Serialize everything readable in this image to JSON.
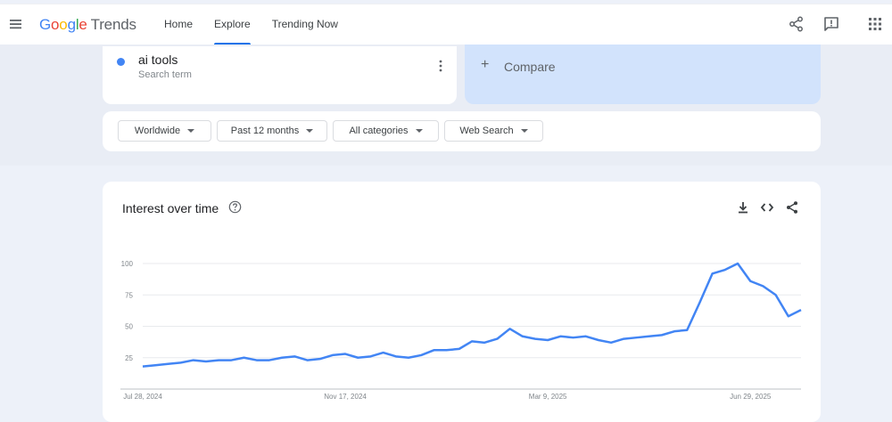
{
  "header": {
    "logo_google": [
      "G",
      "o",
      "o",
      "g",
      "l",
      "e"
    ],
    "logo_trends": "Trends",
    "nav": [
      {
        "label": "Home",
        "active": false
      },
      {
        "label": "Explore",
        "active": true
      },
      {
        "label": "Trending Now",
        "active": false
      }
    ],
    "icons": [
      "menu-icon",
      "share-icon",
      "feedback-icon",
      "apps-grid-icon"
    ]
  },
  "search": {
    "term": "ai tools",
    "term_type": "Search term",
    "term_color": "#4285f4",
    "compare_label": "Compare"
  },
  "filters": {
    "region": "Worldwide",
    "period": "Past 12 months",
    "category": "All categories",
    "property": "Web Search"
  },
  "chart_card": {
    "title": "Interest over time",
    "icons": [
      "help-icon",
      "download-icon",
      "embed-icon",
      "share-icon"
    ]
  },
  "chart_data": {
    "type": "line",
    "title": "Interest over time",
    "xlabel": "",
    "ylabel": "",
    "ylim": [
      0,
      100
    ],
    "yticks": [
      25,
      50,
      75,
      100
    ],
    "x_tick_labels": [
      "Jul 28, 2024",
      "Nov 17, 2024",
      "Mar 9, 2025",
      "Jun 29, 2025"
    ],
    "grid": true,
    "color": "#4285f4",
    "x": [
      "Jul 28, 2024",
      "Aug 4, 2024",
      "Aug 11, 2024",
      "Aug 18, 2024",
      "Aug 25, 2024",
      "Sep 1, 2024",
      "Sep 8, 2024",
      "Sep 15, 2024",
      "Sep 22, 2024",
      "Sep 29, 2024",
      "Oct 6, 2024",
      "Oct 13, 2024",
      "Oct 20, 2024",
      "Oct 27, 2024",
      "Nov 3, 2024",
      "Nov 10, 2024",
      "Nov 17, 2024",
      "Nov 24, 2024",
      "Dec 1, 2024",
      "Dec 8, 2024",
      "Dec 15, 2024",
      "Dec 22, 2024",
      "Dec 29, 2024",
      "Jan 5, 2025",
      "Jan 12, 2025",
      "Jan 19, 2025",
      "Jan 26, 2025",
      "Feb 2, 2025",
      "Feb 9, 2025",
      "Feb 16, 2025",
      "Feb 23, 2025",
      "Mar 2, 2025",
      "Mar 9, 2025",
      "Mar 16, 2025",
      "Mar 23, 2025",
      "Mar 30, 2025",
      "Apr 6, 2025",
      "Apr 13, 2025",
      "Apr 20, 2025",
      "Apr 27, 2025",
      "May 4, 2025",
      "May 11, 2025",
      "May 18, 2025",
      "May 25, 2025",
      "Jun 1, 2025",
      "Jun 8, 2025",
      "Jun 15, 2025",
      "Jun 22, 2025",
      "Jun 29, 2025",
      "Jul 6, 2025",
      "Jul 13, 2025",
      "Jul 20, 2025",
      "Jul 27, 2025"
    ],
    "series": [
      {
        "values": [
          18,
          19,
          20,
          21,
          23,
          22,
          23,
          23,
          25,
          23,
          23,
          25,
          26,
          23,
          24,
          27,
          28,
          25,
          26,
          29,
          26,
          25,
          27,
          31,
          31,
          32,
          38,
          37,
          40,
          48,
          42,
          40,
          39,
          42,
          41,
          42,
          39,
          37,
          40,
          41,
          42,
          43,
          46,
          47,
          69,
          92,
          95,
          100,
          86,
          82,
          75,
          58,
          63
        ]
      }
    ]
  }
}
